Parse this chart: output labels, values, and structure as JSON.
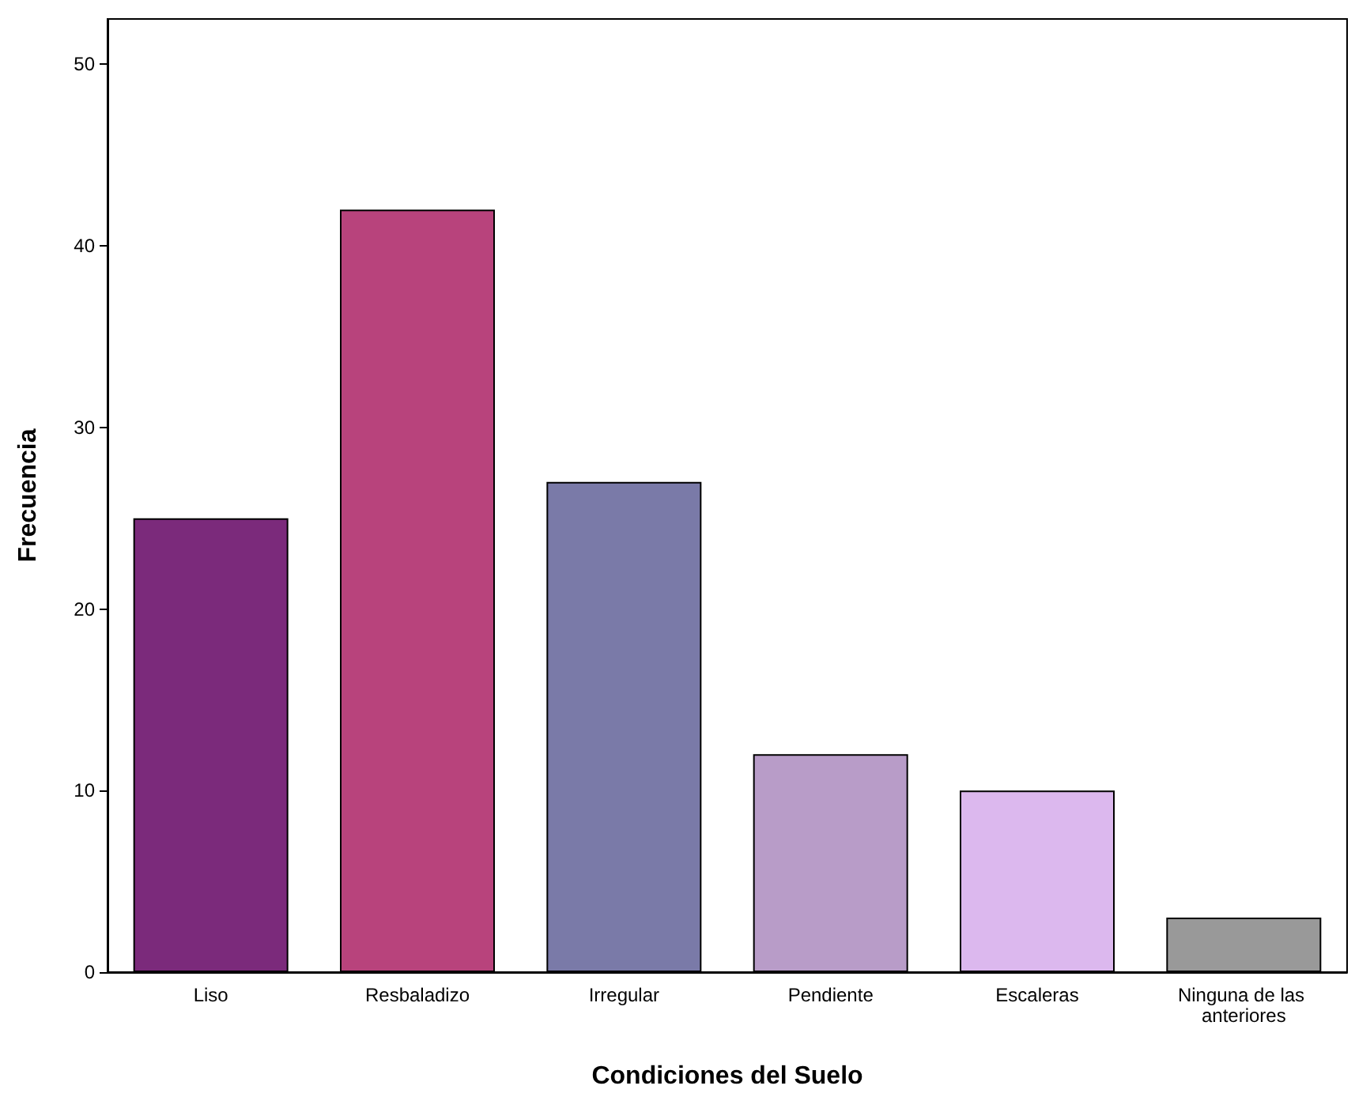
{
  "chart_data": {
    "type": "bar",
    "xlabel": "Condiciones del Suelo",
    "ylabel": "Frecuencia",
    "categories": [
      "Liso",
      "Resbaladizo",
      "Irregular",
      "Pendiente",
      "Escaleras",
      "Ninguna de las anteriores"
    ],
    "values": [
      25,
      42,
      27,
      12,
      10,
      3
    ],
    "colors": [
      "#7b2a7b",
      "#b8437c",
      "#7a7aa8",
      "#b89cc8",
      "#dcb8ee",
      "#999999"
    ],
    "ylim": [
      0,
      52.5
    ],
    "yticks": [
      0,
      10,
      20,
      30,
      40,
      50
    ],
    "grid": false
  }
}
